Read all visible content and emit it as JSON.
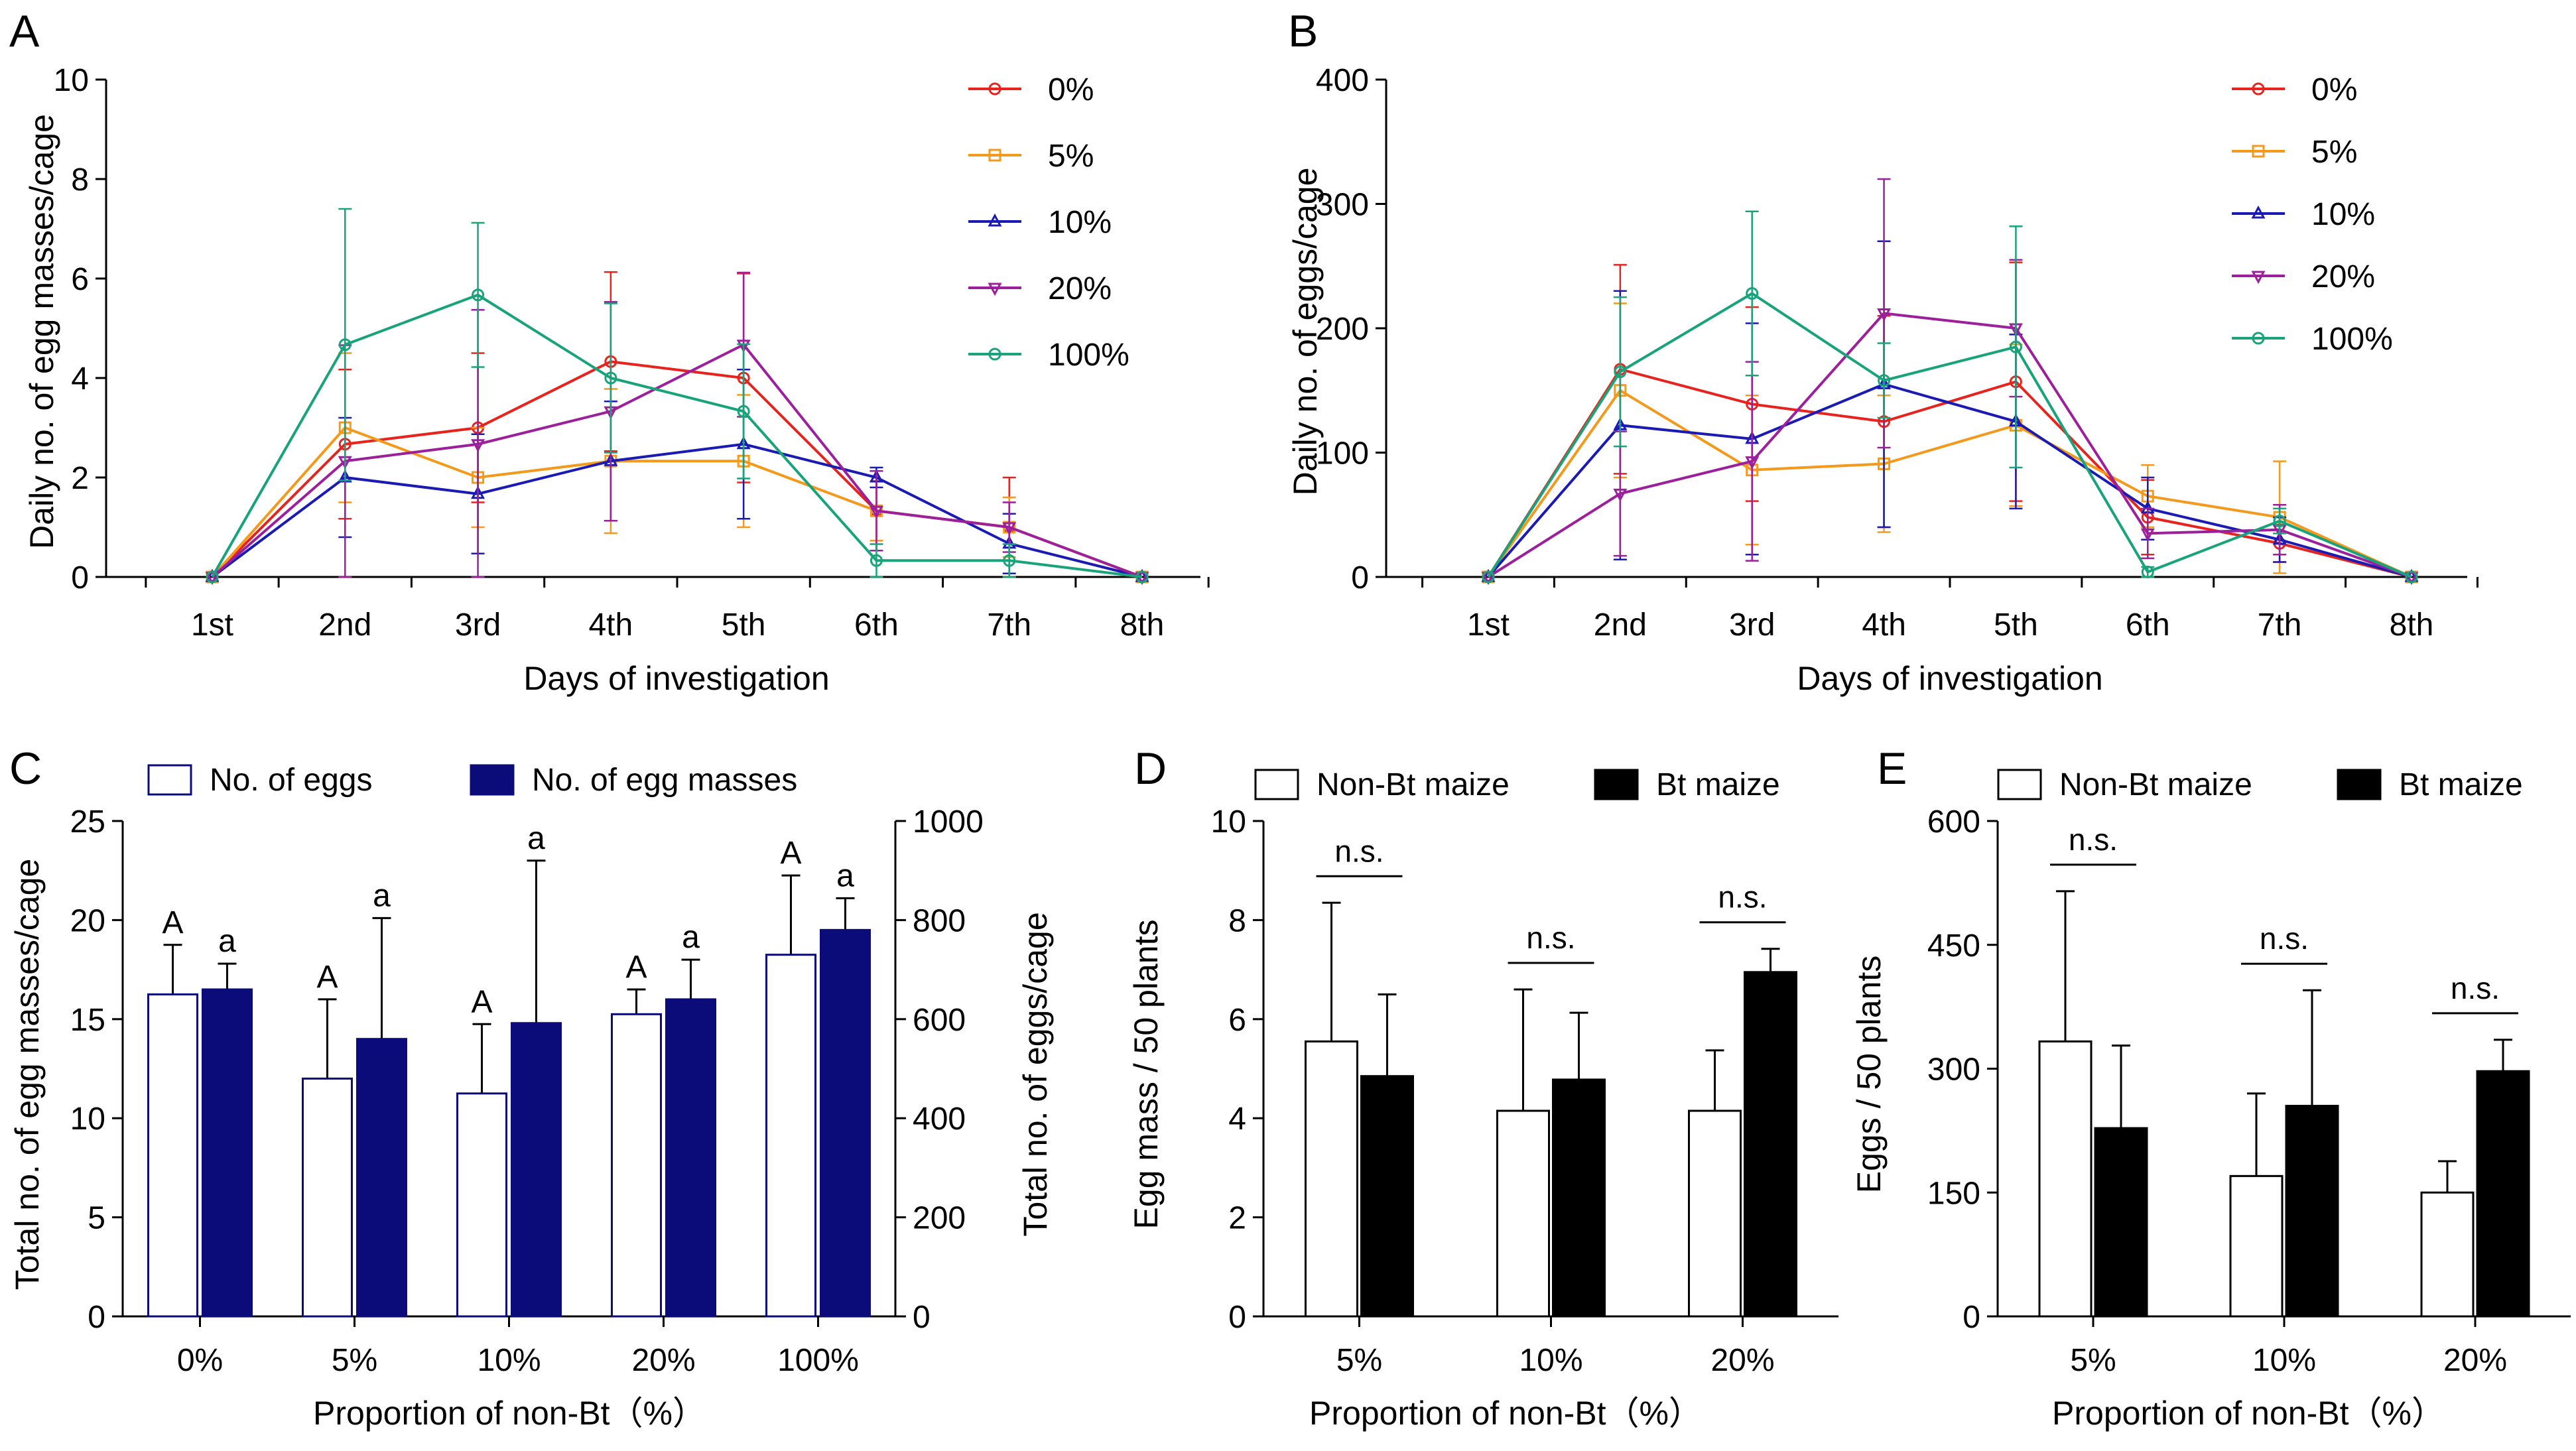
{
  "colors": {
    "c0": "#e8231e",
    "c5": "#f39a1c",
    "c10": "#1a1ab4",
    "c20": "#9c1f9c",
    "c100": "#18a37a",
    "navy": "#0b0b7a",
    "black": "#000000"
  },
  "panels": {
    "A": {
      "letter": "A",
      "chart_data": {
        "type": "line",
        "title": "",
        "xlabel": "Days of investigation",
        "ylabel": "Daily no. of egg masses/cage",
        "categories": [
          "1st",
          "2nd",
          "3rd",
          "4th",
          "5th",
          "6th",
          "7th",
          "8th"
        ],
        "ylim": [
          0,
          10
        ],
        "yticks": [
          0,
          2,
          4,
          6,
          8,
          10
        ],
        "series": [
          {
            "name": "0%",
            "marker": "circle",
            "colorKey": "c0",
            "values": [
              0,
              2.67,
              3.0,
              4.33,
              4.0,
              1.33,
              1.0,
              0
            ],
            "err": [
              0,
              1.5,
              1.5,
              1.8,
              2.1,
              0.8,
              1.0,
              0
            ]
          },
          {
            "name": "5%",
            "marker": "square",
            "colorKey": "c5",
            "values": [
              0,
              3.0,
              2.0,
              2.33,
              2.33,
              1.33,
              1.0,
              0
            ],
            "err": [
              0,
              1.5,
              1.0,
              1.45,
              1.33,
              0.6,
              0.6,
              0
            ]
          },
          {
            "name": "10%",
            "marker": "triangle",
            "colorKey": "c10",
            "values": [
              0,
              2.0,
              1.67,
              2.33,
              2.67,
              2.0,
              0.67,
              0
            ],
            "err": [
              0,
              1.2,
              1.2,
              1.2,
              1.5,
              0.2,
              0.6,
              0
            ]
          },
          {
            "name": "20%",
            "marker": "triangle-down",
            "colorKey": "c20",
            "values": [
              0,
              2.33,
              2.67,
              3.33,
              4.67,
              1.33,
              1.0,
              0
            ],
            "err": [
              0,
              2.33,
              2.7,
              2.2,
              1.45,
              0.8,
              0.5,
              0
            ]
          },
          {
            "name": "100%",
            "marker": "circle",
            "colorKey": "c100",
            "values": [
              0,
              4.67,
              5.67,
              4.0,
              3.33,
              0.33,
              0.33,
              0
            ],
            "err": [
              0,
              2.73,
              1.45,
              1.5,
              1.35,
              0.33,
              0.33,
              0
            ]
          }
        ]
      }
    },
    "B": {
      "letter": "B",
      "chart_data": {
        "type": "line",
        "title": "",
        "xlabel": "Days of investigation",
        "ylabel": "Daily no. of eggs/cage",
        "categories": [
          "1st",
          "2nd",
          "3rd",
          "4th",
          "5th",
          "6th",
          "7th",
          "8th"
        ],
        "ylim": [
          0,
          400
        ],
        "yticks": [
          0,
          100,
          200,
          300,
          400
        ],
        "series": [
          {
            "name": "0%",
            "marker": "circle",
            "colorKey": "c0",
            "values": [
              0,
              167,
              139,
              125,
              157,
              48,
              27,
              0
            ],
            "err": [
              0,
              84,
              78,
              85,
              96,
              30,
              15,
              0
            ]
          },
          {
            "name": "5%",
            "marker": "square",
            "colorKey": "c5",
            "values": [
              0,
              150,
              86,
              91,
              122,
              65,
              48,
              0
            ],
            "err": [
              0,
              70,
              60,
              55,
              65,
              25,
              45,
              0
            ]
          },
          {
            "name": "10%",
            "marker": "triangle",
            "colorKey": "c10",
            "values": [
              0,
              122,
              111,
              155,
              125,
              55,
              30,
              0
            ],
            "err": [
              0,
              108,
              93,
              115,
              70,
              25,
              18,
              0
            ]
          },
          {
            "name": "20%",
            "marker": "triangle-down",
            "colorKey": "c20",
            "values": [
              0,
              67,
              93,
              212,
              200,
              35,
              38,
              0
            ],
            "err": [
              0,
              50,
              80,
              108,
              55,
              20,
              20,
              0
            ]
          },
          {
            "name": "100%",
            "marker": "circle",
            "colorKey": "c100",
            "values": [
              0,
              165,
              228,
              158,
              185,
              4,
              45,
              0
            ],
            "err": [
              0,
              60,
              66,
              30,
              97,
              4,
              10,
              0
            ]
          }
        ]
      }
    },
    "C": {
      "letter": "C",
      "chart_data": {
        "type": "bar",
        "title": "",
        "xlabel": "Proportion of non-Bt（%）",
        "ylabel": "Total no. of egg masses/cage",
        "ylabel_right": "Total no. of eggs/cage",
        "categories": [
          "0%",
          "5%",
          "10%",
          "20%",
          "100%"
        ],
        "ylim": [
          0,
          25
        ],
        "yticks": [
          0,
          5,
          10,
          15,
          20,
          25
        ],
        "ylim_right": [
          0,
          1000
        ],
        "yticks_right": [
          0,
          200,
          400,
          600,
          800,
          1000
        ],
        "series": [
          {
            "name": "No. of eggs",
            "axis": "right",
            "fill": "white",
            "values": [
              650,
              480,
              450,
              610,
              730
            ],
            "err": [
              100,
              160,
              140,
              50,
              160
            ],
            "letters": [
              "A",
              "A",
              "A",
              "A",
              "A"
            ]
          },
          {
            "name": "No. of egg masses",
            "axis": "left",
            "fill": "navy",
            "values": [
              16.5,
              14.0,
              14.8,
              16.0,
              19.5
            ],
            "err": [
              1.3,
              6.1,
              8.2,
              2.0,
              1.6
            ],
            "letters": [
              "a",
              "a",
              "a",
              "a",
              "a"
            ]
          }
        ]
      }
    },
    "D": {
      "letter": "D",
      "chart_data": {
        "type": "bar",
        "title": "",
        "xlabel": "Proportion of non-Bt（%）",
        "ylabel": "Egg mass / 50 plants",
        "categories": [
          "5%",
          "10%",
          "20%"
        ],
        "ylim": [
          0,
          10
        ],
        "yticks": [
          0,
          2,
          4,
          6,
          8,
          10
        ],
        "series": [
          {
            "name": "Non-Bt maize",
            "fill": "white",
            "values": [
              5.55,
              4.15,
              4.15
            ],
            "err": [
              2.8,
              2.45,
              1.22
            ]
          },
          {
            "name": "Bt maize",
            "fill": "black",
            "values": [
              4.85,
              4.78,
              6.95
            ],
            "err": [
              1.65,
              1.35,
              0.47
            ]
          }
        ],
        "annotations": [
          "n.s.",
          "n.s.",
          "n.s."
        ]
      }
    },
    "E": {
      "letter": "E",
      "chart_data": {
        "type": "bar",
        "title": "",
        "xlabel": "Proportion of non-Bt（%）",
        "ylabel": "Eggs / 50 plants",
        "categories": [
          "5%",
          "10%",
          "20%"
        ],
        "ylim": [
          0,
          600
        ],
        "yticks": [
          0,
          150,
          300,
          450,
          600
        ],
        "series": [
          {
            "name": "Non-Bt maize",
            "fill": "white",
            "values": [
              333,
              170,
              150
            ],
            "err": [
              182,
              100,
              38
            ]
          },
          {
            "name": "Bt maize",
            "fill": "black",
            "values": [
              228,
              255,
              297
            ],
            "err": [
              100,
              140,
              38
            ]
          }
        ],
        "annotations": [
          "n.s.",
          "n.s.",
          "n.s."
        ]
      }
    }
  }
}
